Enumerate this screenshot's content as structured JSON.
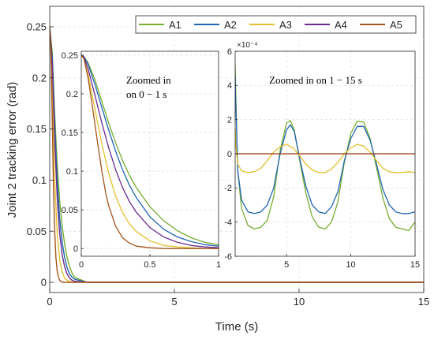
{
  "chart_data": [
    {
      "id": "main",
      "type": "line",
      "xlabel": "Time (s)",
      "ylabel": "Joint 2 tracking error (rad)",
      "xlim": [
        0,
        15
      ],
      "ylim": [
        -0.01,
        0.27
      ],
      "xticks": [
        0,
        5,
        10,
        15
      ],
      "yticks": [
        0,
        0.05,
        0.1,
        0.15,
        0.2,
        0.25
      ],
      "xtick_labels": [
        "0",
        "5",
        "10",
        "15"
      ],
      "ytick_labels": [
        "0",
        "0.05",
        "0.1",
        "0.15",
        "0.2",
        "0.25"
      ],
      "grid": true,
      "legend": {
        "placement": "top-right",
        "orientation": "horizontal"
      },
      "series": [
        {
          "name": "A1",
          "color": "#77AC30",
          "x": [
            0,
            0.1,
            0.2,
            0.3,
            0.4,
            0.5,
            0.6,
            0.7,
            0.8,
            0.9,
            1.0,
            1.5,
            15
          ],
          "y": [
            0.25,
            0.225,
            0.165,
            0.115,
            0.08,
            0.055,
            0.037,
            0.024,
            0.015,
            0.009,
            0.005,
            0.0,
            0.0
          ]
        },
        {
          "name": "A2",
          "color": "#2166B0",
          "x": [
            0,
            0.1,
            0.2,
            0.3,
            0.4,
            0.5,
            0.6,
            0.7,
            0.8,
            0.9,
            1.0,
            1.5,
            15
          ],
          "y": [
            0.25,
            0.22,
            0.155,
            0.1,
            0.063,
            0.039,
            0.024,
            0.014,
            0.008,
            0.005,
            0.003,
            0.0,
            0.0
          ]
        },
        {
          "name": "A3",
          "color": "#E3C12F",
          "x": [
            0,
            0.1,
            0.2,
            0.3,
            0.4,
            0.5,
            0.6,
            0.7,
            0.8,
            0.9,
            1.0,
            1.5,
            15
          ],
          "y": [
            0.25,
            0.19,
            0.1,
            0.048,
            0.022,
            0.01,
            0.004,
            0.002,
            0.001,
            0.0,
            0.0,
            0.0,
            0.0
          ]
        },
        {
          "name": "A4",
          "color": "#6A2C91",
          "x": [
            0,
            0.1,
            0.2,
            0.3,
            0.4,
            0.5,
            0.6,
            0.7,
            0.8,
            0.9,
            1.0,
            1.5,
            15
          ],
          "y": [
            0.25,
            0.215,
            0.14,
            0.083,
            0.048,
            0.027,
            0.015,
            0.008,
            0.004,
            0.002,
            0.001,
            0.0,
            0.0
          ]
        },
        {
          "name": "A5",
          "color": "#A5541B",
          "x": [
            0,
            0.05,
            0.1,
            0.15,
            0.2,
            0.25,
            0.3,
            0.35,
            0.4,
            0.5,
            0.6,
            1.0,
            15
          ],
          "y": [
            0.25,
            0.225,
            0.16,
            0.095,
            0.05,
            0.024,
            0.011,
            0.005,
            0.002,
            0.0,
            0.0,
            0.0,
            0.0
          ]
        }
      ]
    },
    {
      "id": "inset_left",
      "type": "line",
      "annotation": "Zoomed in on 0 − 1 s",
      "annotation_line1": "Zoomed in",
      "annotation_line2": "on 0 − 1 s",
      "xlim": [
        0,
        1
      ],
      "ylim": [
        -0.01,
        0.255
      ],
      "xticks": [
        0,
        0.5,
        1
      ],
      "yticks": [
        0,
        0.05,
        0.1,
        0.15,
        0.2,
        0.25
      ],
      "xtick_labels": [
        "0",
        "0.5",
        "1"
      ],
      "ytick_labels": [
        "0",
        "0.05",
        "0.1",
        "0.15",
        "0.2",
        "0.25"
      ],
      "grid": true,
      "series": [
        {
          "name": "A1",
          "color": "#77AC30",
          "x": [
            0,
            0.02,
            0.05,
            0.1,
            0.15,
            0.2,
            0.25,
            0.3,
            0.35,
            0.4,
            0.5,
            0.6,
            0.7,
            0.8,
            0.9,
            1.0
          ],
          "y": [
            0.25,
            0.248,
            0.24,
            0.218,
            0.19,
            0.162,
            0.137,
            0.114,
            0.095,
            0.079,
            0.054,
            0.036,
            0.023,
            0.014,
            0.008,
            0.005
          ]
        },
        {
          "name": "A2",
          "color": "#2166B0",
          "x": [
            0,
            0.02,
            0.05,
            0.1,
            0.15,
            0.2,
            0.25,
            0.3,
            0.35,
            0.4,
            0.5,
            0.6,
            0.7,
            0.8,
            0.9,
            1.0
          ],
          "y": [
            0.25,
            0.248,
            0.238,
            0.212,
            0.182,
            0.153,
            0.126,
            0.102,
            0.082,
            0.066,
            0.041,
            0.025,
            0.015,
            0.009,
            0.005,
            0.003
          ]
        },
        {
          "name": "A3",
          "color": "#E3C12F",
          "x": [
            0,
            0.02,
            0.05,
            0.1,
            0.15,
            0.2,
            0.25,
            0.3,
            0.35,
            0.4,
            0.5,
            0.6,
            0.7,
            0.8,
            0.9,
            1.0
          ],
          "y": [
            0.25,
            0.245,
            0.225,
            0.18,
            0.135,
            0.097,
            0.068,
            0.047,
            0.032,
            0.022,
            0.01,
            0.004,
            0.002,
            0.001,
            0.0,
            0.0
          ]
        },
        {
          "name": "A4",
          "color": "#6A2C91",
          "x": [
            0,
            0.02,
            0.05,
            0.1,
            0.15,
            0.2,
            0.25,
            0.3,
            0.35,
            0.4,
            0.5,
            0.6,
            0.7,
            0.8,
            0.9,
            1.0
          ],
          "y": [
            0.25,
            0.247,
            0.232,
            0.198,
            0.162,
            0.13,
            0.102,
            0.079,
            0.061,
            0.047,
            0.027,
            0.015,
            0.008,
            0.004,
            0.002,
            0.001
          ]
        },
        {
          "name": "A5",
          "color": "#A5541B",
          "x": [
            0,
            0.02,
            0.05,
            0.08,
            0.1,
            0.12,
            0.15,
            0.18,
            0.2,
            0.25,
            0.3,
            0.35,
            0.4,
            0.5,
            0.6,
            1.0
          ],
          "y": [
            0.25,
            0.245,
            0.22,
            0.185,
            0.16,
            0.135,
            0.1,
            0.07,
            0.055,
            0.029,
            0.014,
            0.007,
            0.003,
            0.001,
            0.0,
            0.0
          ]
        }
      ]
    },
    {
      "id": "inset_right",
      "type": "line",
      "annotation": "Zoomed in on 1 − 15 s",
      "exponent_label": "×10⁻⁴",
      "xlim": [
        1,
        15
      ],
      "ylim": [
        -6,
        6
      ],
      "xticks": [
        5,
        10,
        15
      ],
      "yticks": [
        -6,
        -4,
        -2,
        0,
        2,
        4,
        6
      ],
      "xtick_labels": [
        "5",
        "10",
        "15"
      ],
      "ytick_labels": [
        "-6",
        "-4",
        "-2",
        "0",
        "2",
        "4",
        "6"
      ],
      "grid": true,
      "series": [
        {
          "name": "A1",
          "color": "#77AC30",
          "x": [
            1.0,
            1.05,
            1.2,
            1.5,
            2.0,
            2.5,
            3.0,
            3.5,
            4.0,
            4.5,
            5.0,
            5.3,
            5.6,
            6.0,
            6.5,
            7.0,
            7.5,
            8.0,
            8.5,
            9.0,
            9.5,
            10.0,
            10.5,
            11.0,
            11.5,
            12.0,
            12.5,
            13.0,
            13.5,
            14.0,
            14.5,
            15.0
          ],
          "y": [
            5.2,
            3.5,
            -1.0,
            -3.2,
            -4.2,
            -4.4,
            -4.3,
            -3.9,
            -2.5,
            0.2,
            1.8,
            1.95,
            1.4,
            -0.3,
            -2.3,
            -3.7,
            -4.3,
            -4.4,
            -4.0,
            -2.8,
            -0.5,
            1.2,
            1.9,
            1.85,
            0.9,
            -0.8,
            -2.6,
            -3.8,
            -4.3,
            -4.4,
            -4.5,
            -4.0
          ]
        },
        {
          "name": "A2",
          "color": "#2166B0",
          "x": [
            1.0,
            1.05,
            1.2,
            1.5,
            2.0,
            2.5,
            3.0,
            3.5,
            4.0,
            4.5,
            5.0,
            5.3,
            5.6,
            6.0,
            6.5,
            7.0,
            7.5,
            8.0,
            8.5,
            9.0,
            9.5,
            10.0,
            10.5,
            11.0,
            11.5,
            12.0,
            12.5,
            13.0,
            13.5,
            14.0,
            14.5,
            15.0
          ],
          "y": [
            4.5,
            3.0,
            -1.0,
            -2.7,
            -3.4,
            -3.5,
            -3.4,
            -3.0,
            -2.0,
            0.0,
            1.4,
            1.7,
            1.3,
            -0.2,
            -1.9,
            -3.0,
            -3.4,
            -3.5,
            -3.1,
            -2.2,
            -0.4,
            0.9,
            1.6,
            1.6,
            0.8,
            -0.6,
            -2.1,
            -3.0,
            -3.4,
            -3.5,
            -3.5,
            -3.4
          ]
        },
        {
          "name": "A3",
          "color": "#E3C12F",
          "x": [
            1.0,
            1.05,
            1.2,
            1.5,
            2.0,
            2.5,
            3.0,
            3.5,
            4.0,
            4.5,
            5.0,
            5.5,
            6.0,
            6.5,
            7.0,
            7.5,
            8.0,
            8.5,
            9.0,
            9.5,
            10.0,
            10.5,
            11.0,
            11.5,
            12.0,
            12.5,
            13.0,
            13.5,
            14.0,
            14.5,
            15.0
          ],
          "y": [
            1.5,
            0.5,
            -0.6,
            -1.0,
            -1.1,
            -1.05,
            -0.85,
            -0.4,
            0.1,
            0.4,
            0.55,
            0.35,
            -0.1,
            -0.6,
            -0.95,
            -1.1,
            -1.1,
            -0.9,
            -0.5,
            0.0,
            0.35,
            0.55,
            0.45,
            0.1,
            -0.4,
            -0.85,
            -1.05,
            -1.1,
            -1.1,
            -1.05,
            -1.1
          ]
        },
        {
          "name": "A4",
          "color": "#6A2C91",
          "x": [
            1,
            15
          ],
          "y": [
            0.0,
            0.0
          ]
        },
        {
          "name": "A5",
          "color": "#A5541B",
          "x": [
            1,
            15
          ],
          "y": [
            0.0,
            0.0
          ]
        }
      ]
    }
  ]
}
